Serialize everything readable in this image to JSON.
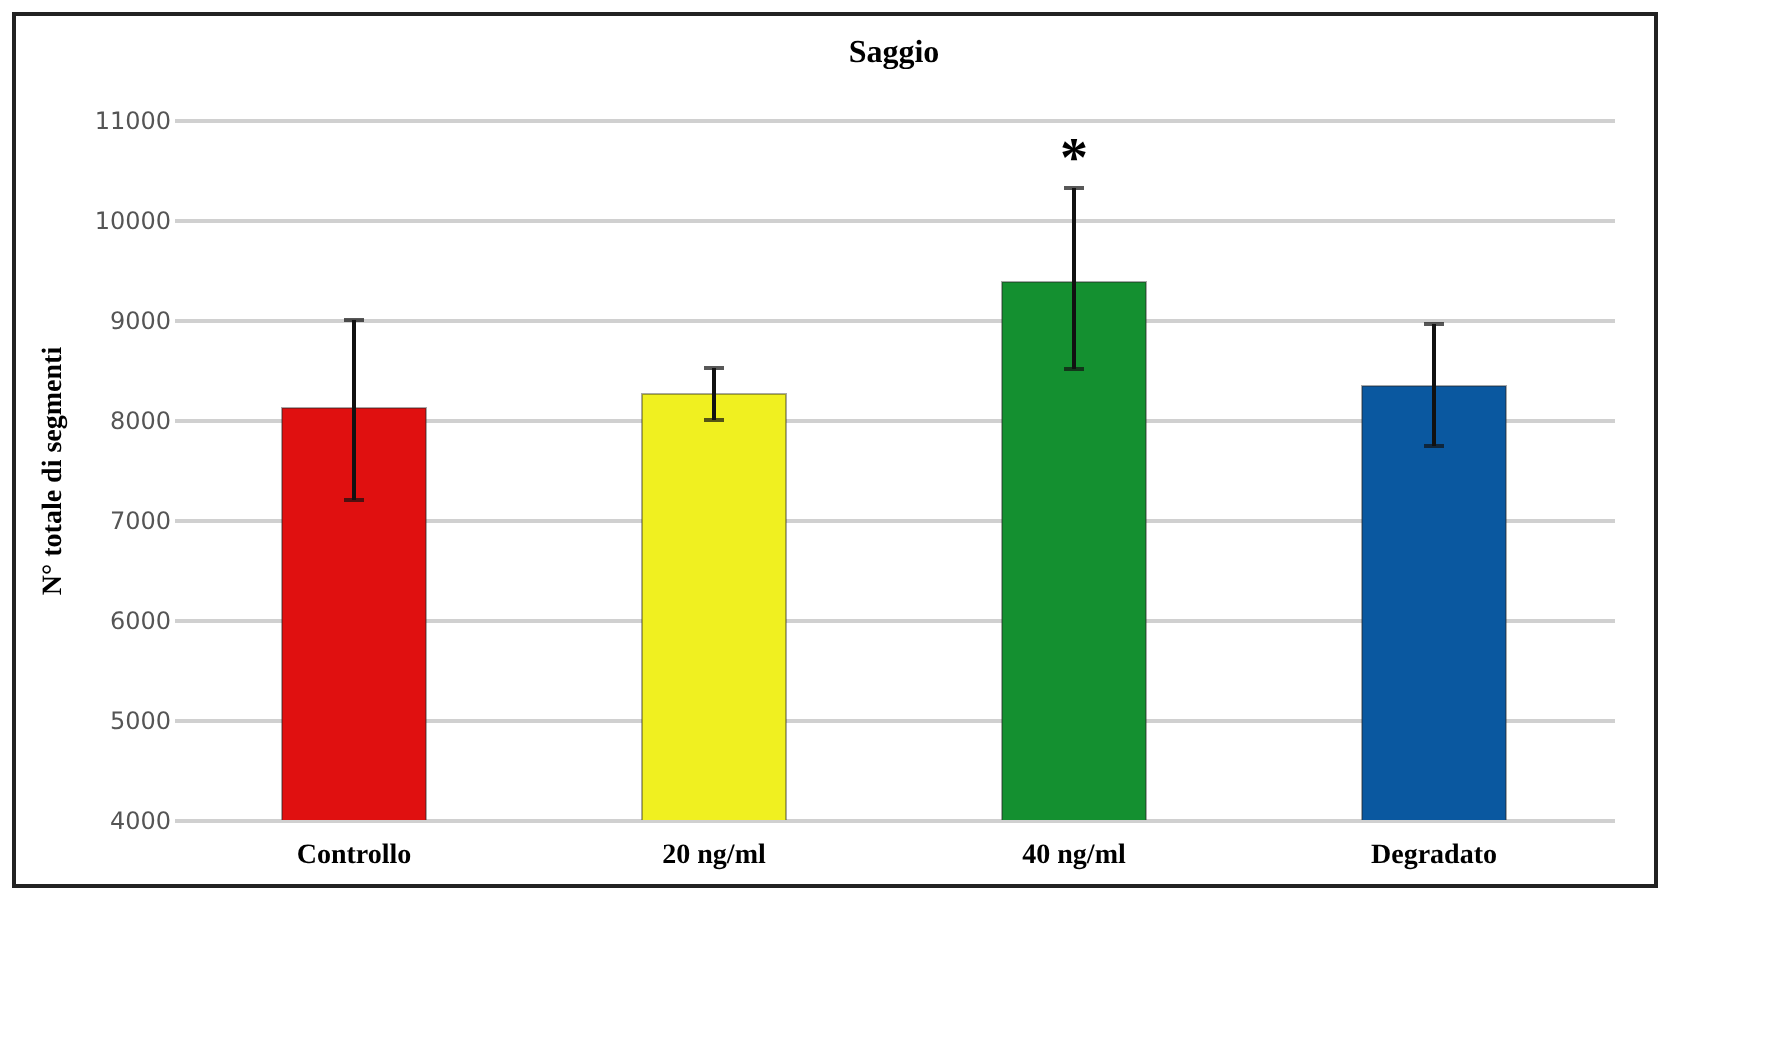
{
  "chart_data": {
    "type": "bar",
    "title": "Saggio",
    "ylabel": "N° totale di segmenti",
    "categories": [
      "Controllo",
      "20 ng/ml",
      "40 ng/ml",
      "Degradato"
    ],
    "values": [
      8120,
      8260,
      9380,
      8340
    ],
    "colors": [
      "#e01010",
      "#f0f020",
      "#149030",
      "#0a58a0"
    ],
    "errors": [
      [
        7200,
        9000
      ],
      [
        8000,
        8520
      ],
      [
        8510,
        10320
      ],
      [
        7740,
        8960
      ]
    ],
    "annotations": [
      "*"
    ],
    "ylim": [
      4000,
      11000
    ],
    "yticks": [
      4000,
      5000,
      6000,
      7000,
      8000,
      9000,
      10000,
      11000
    ],
    "grid": "y"
  }
}
